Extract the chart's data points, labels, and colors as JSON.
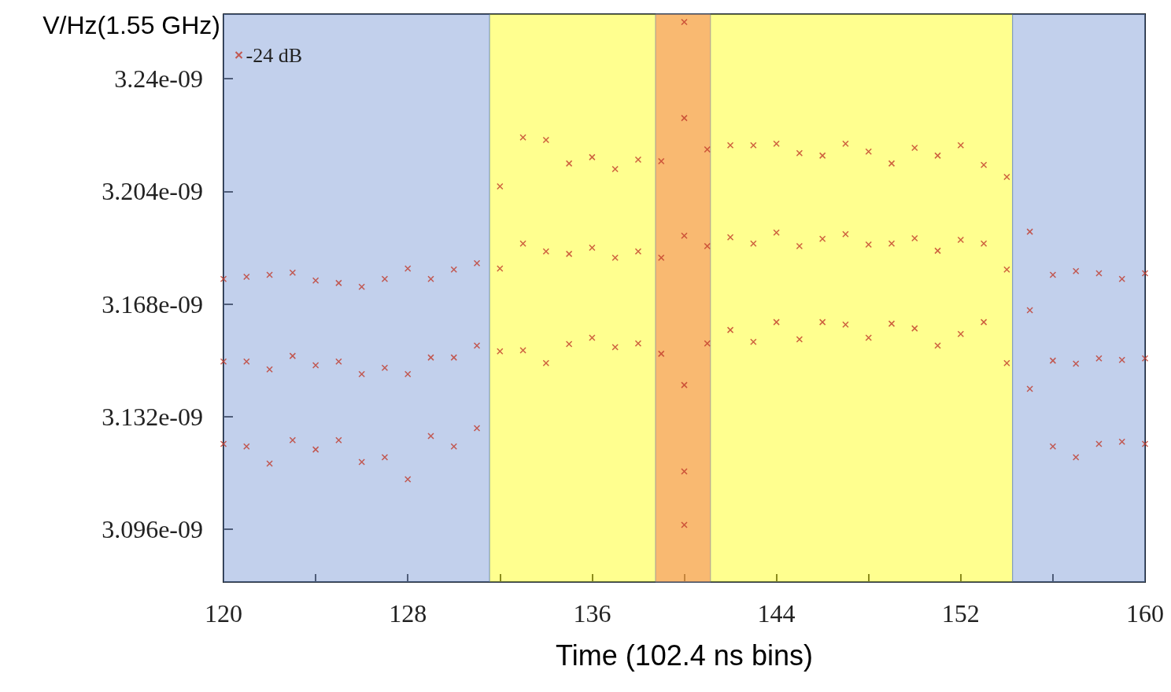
{
  "chart_data": {
    "type": "scatter",
    "xlabel": "Time (102.4 ns bins)",
    "ylabel": "V/Hz(1.55 GHz)",
    "xlim": [
      120,
      160
    ],
    "xticks": [
      120,
      {
        "value": 124,
        "label": null
      },
      128,
      {
        "value": 132,
        "label": null
      },
      136,
      {
        "value": 140,
        "label": null
      },
      144,
      {
        "value": 148,
        "label": null
      },
      152,
      {
        "value": 156,
        "label": null
      },
      160
    ],
    "ylim": [
      3.0792e-09,
      3.2606e-09
    ],
    "yticks": [
      {
        "value": 3.096e-09,
        "label": "3.096e-09"
      },
      {
        "value": 3.132e-09,
        "label": "3.132e-09"
      },
      {
        "value": 3.168e-09,
        "label": "3.168e-09"
      },
      {
        "value": 3.204e-09,
        "label": "3.204e-09"
      },
      {
        "value": 3.24e-09,
        "label": "3.24e-09"
      }
    ],
    "grid": false,
    "legend": "top left",
    "marker": "cross",
    "bands": [
      {
        "axis": "x",
        "from": 120,
        "to": 131.55,
        "color": "#8faadc"
      },
      {
        "axis": "x",
        "from": 131.55,
        "to": 154.25,
        "color": "#ffff33"
      },
      {
        "axis": "x",
        "from": 154.25,
        "to": 160,
        "color": "#8faadc"
      },
      {
        "axis": "x",
        "from": 138.75,
        "to": 141.14,
        "color": "#f4805a"
      }
    ],
    "series": [
      {
        "name": "-24 dB",
        "color": "#c0392b",
        "x": [
          120,
          120,
          120,
          121,
          121,
          121,
          122,
          122,
          122,
          123,
          123,
          123,
          124,
          124,
          124,
          125,
          125,
          125,
          126,
          126,
          126,
          127,
          127,
          127,
          128,
          128,
          128,
          129,
          129,
          129,
          130,
          130,
          130,
          131,
          131,
          131,
          132,
          132,
          132,
          133,
          133,
          133,
          134,
          134,
          134,
          135,
          135,
          135,
          136,
          136,
          136,
          137,
          137,
          137,
          138,
          138,
          138,
          139,
          139,
          139,
          140,
          140,
          140,
          140,
          140,
          140,
          141,
          141,
          141,
          142,
          142,
          142,
          143,
          143,
          143,
          144,
          144,
          144,
          145,
          145,
          145,
          146,
          146,
          146,
          147,
          147,
          147,
          148,
          148,
          148,
          149,
          149,
          149,
          150,
          150,
          150,
          151,
          151,
          151,
          152,
          152,
          152,
          153,
          153,
          153,
          154,
          154,
          154,
          155,
          155,
          155,
          156,
          156,
          156,
          157,
          157,
          157,
          158,
          158,
          158,
          159,
          159,
          159,
          160,
          160,
          160
        ],
        "values": [
          3.176e-09,
          3.1496e-09,
          3.1233e-09,
          3.1767e-09,
          3.1496e-09,
          3.1225e-09,
          3.1773e-09,
          3.1471e-09,
          3.117e-09,
          3.178e-09,
          3.1514e-09,
          3.1245e-09,
          3.1755e-09,
          3.1484e-09,
          3.1215e-09,
          3.1747e-09,
          3.1496e-09,
          3.1245e-09,
          3.1735e-09,
          3.1456e-09,
          3.1175e-09,
          3.176e-09,
          3.1476e-09,
          3.119e-09,
          3.1793e-09,
          3.1456e-09,
          3.112e-09,
          3.176e-09,
          3.1509e-09,
          3.1258e-09,
          3.179e-09,
          3.1509e-09,
          3.1225e-09,
          3.181e-09,
          3.1547e-09,
          3.1283e-09,
          3.2056e-09,
          3.1793e-09,
          3.1529e-09,
          3.2212e-09,
          3.1873e-09,
          3.1532e-09,
          3.2204e-09,
          3.1848e-09,
          3.1491e-09,
          3.2129e-09,
          3.184e-09,
          3.1552e-09,
          3.2149e-09,
          3.186e-09,
          3.1572e-09,
          3.2111e-09,
          3.1828e-09,
          3.1542e-09,
          3.2141e-09,
          3.1848e-09,
          3.1554e-09,
          3.2136e-09,
          3.1828e-09,
          3.1521e-09,
          3.2581e-09,
          3.2274e-09,
          3.1898e-09,
          3.1421e-09,
          3.1145e-09,
          3.0974e-09,
          3.2174e-09,
          3.1865e-09,
          3.1554e-09,
          3.2187e-09,
          3.1893e-09,
          3.1597e-09,
          3.2187e-09,
          3.1873e-09,
          3.1559e-09,
          3.2192e-09,
          3.1908e-09,
          3.1622e-09,
          3.2162e-09,
          3.1865e-09,
          3.1567e-09,
          3.2154e-09,
          3.1888e-09,
          3.1622e-09,
          3.2192e-09,
          3.1903e-09,
          3.1614e-09,
          3.2167e-09,
          3.187e-09,
          3.1572e-09,
          3.2129e-09,
          3.1873e-09,
          3.1617e-09,
          3.2179e-09,
          3.189e-09,
          3.1602e-09,
          3.2154e-09,
          3.185e-09,
          3.1547e-09,
          3.2187e-09,
          3.1885e-09,
          3.1584e-09,
          3.2124e-09,
          3.1873e-09,
          3.1622e-09,
          3.2086e-09,
          3.179e-09,
          3.1491e-09,
          3.1911e-09,
          3.166e-09,
          3.1409e-09,
          3.1773e-09,
          3.1499e-09,
          3.1225e-09,
          3.1785e-09,
          3.1489e-09,
          3.119e-09,
          3.1778e-09,
          3.1506e-09,
          3.1233e-09,
          3.176e-09,
          3.1501e-09,
          3.124e-09,
          3.1778e-09,
          3.1506e-09,
          3.1233e-09
        ]
      }
    ]
  }
}
